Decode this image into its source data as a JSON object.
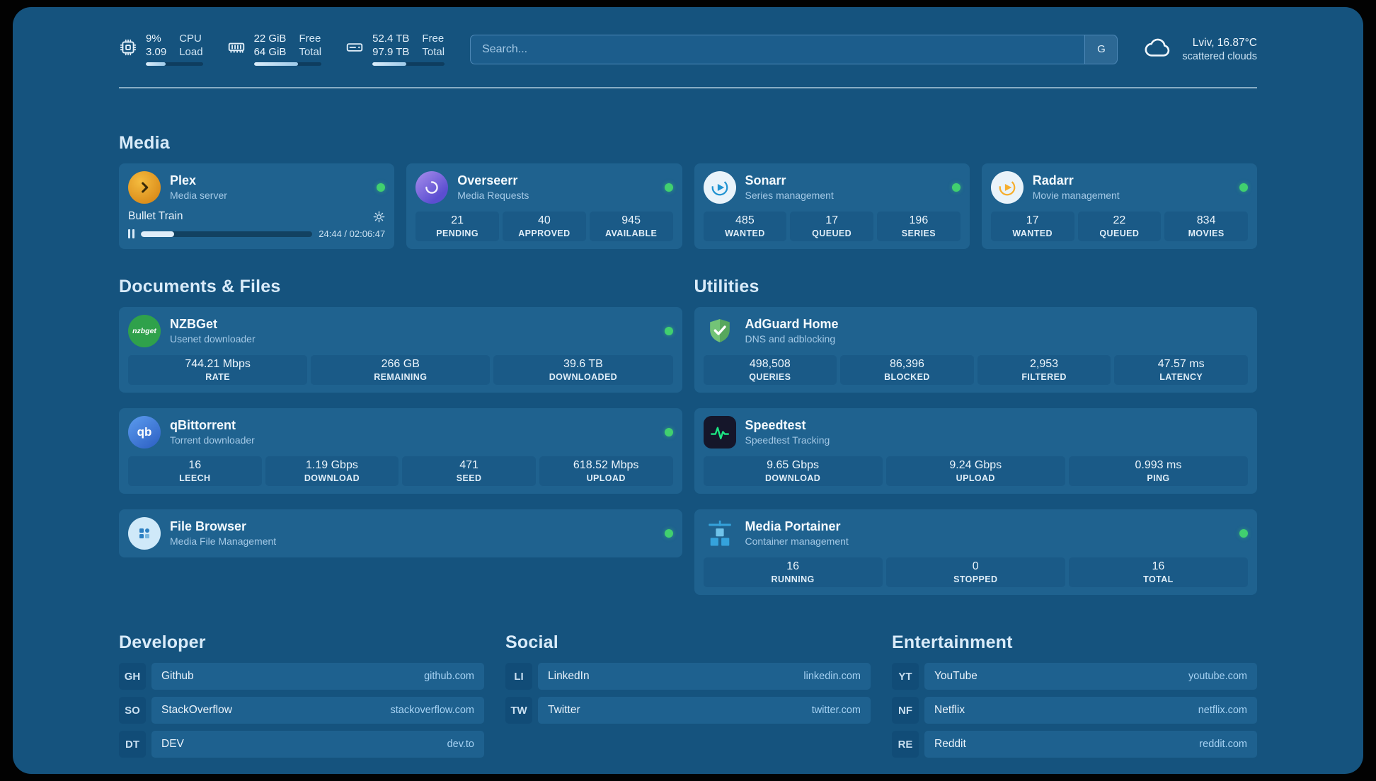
{
  "topbar": {
    "monitors": [
      {
        "id": "cpu",
        "values": [
          "9%",
          "3.09"
        ],
        "labels": [
          "CPU",
          "Load"
        ],
        "progress": 35
      },
      {
        "id": "ram",
        "values": [
          "22 GiB",
          "64 GiB"
        ],
        "labels": [
          "Free",
          "Total"
        ],
        "progress": 65
      },
      {
        "id": "disk",
        "values": [
          "52.4 TB",
          "97.9 TB"
        ],
        "labels": [
          "Free",
          "Total"
        ],
        "progress": 47
      }
    ],
    "search": {
      "placeholder": "Search...",
      "button_label": "G"
    },
    "weather": {
      "location": "Lviv, 16.87°C",
      "condition": "scattered clouds"
    }
  },
  "sections": {
    "media": "Media",
    "documents": "Documents & Files",
    "utilities": "Utilities",
    "developer": "Developer",
    "social": "Social",
    "entertainment": "Entertainment"
  },
  "apps": {
    "plex": {
      "name": "Plex",
      "subtitle": "Media server",
      "player": {
        "title": "Bullet Train",
        "time": "24:44 / 02:06:47",
        "progress": 19.5
      }
    },
    "overseerr": {
      "name": "Overseerr",
      "subtitle": "Media Requests",
      "stats": [
        {
          "value": "21",
          "label": "PENDING"
        },
        {
          "value": "40",
          "label": "APPROVED"
        },
        {
          "value": "945",
          "label": "AVAILABLE"
        }
      ]
    },
    "sonarr": {
      "name": "Sonarr",
      "subtitle": "Series management",
      "stats": [
        {
          "value": "485",
          "label": "WANTED"
        },
        {
          "value": "17",
          "label": "QUEUED"
        },
        {
          "value": "196",
          "label": "SERIES"
        }
      ]
    },
    "radarr": {
      "name": "Radarr",
      "subtitle": "Movie management",
      "stats": [
        {
          "value": "17",
          "label": "WANTED"
        },
        {
          "value": "22",
          "label": "QUEUED"
        },
        {
          "value": "834",
          "label": "MOVIES"
        }
      ]
    },
    "nzbget": {
      "name": "NZBGet",
      "subtitle": "Usenet downloader",
      "icon_text": "nzbget",
      "stats": [
        {
          "value": "744.21 Mbps",
          "label": "RATE"
        },
        {
          "value": "266 GB",
          "label": "REMAINING"
        },
        {
          "value": "39.6 TB",
          "label": "DOWNLOADED"
        }
      ]
    },
    "qbittorrent": {
      "name": "qBittorrent",
      "subtitle": "Torrent downloader",
      "icon_text": "qb",
      "stats": [
        {
          "value": "16",
          "label": "LEECH"
        },
        {
          "value": "1.19 Gbps",
          "label": "DOWNLOAD"
        },
        {
          "value": "471",
          "label": "SEED"
        },
        {
          "value": "618.52 Mbps",
          "label": "UPLOAD"
        }
      ]
    },
    "filebrowser": {
      "name": "File Browser",
      "subtitle": "Media File Management"
    },
    "adguard": {
      "name": "AdGuard Home",
      "subtitle": "DNS and adblocking",
      "stats": [
        {
          "value": "498,508",
          "label": "QUERIES"
        },
        {
          "value": "86,396",
          "label": "BLOCKED"
        },
        {
          "value": "2,953",
          "label": "FILTERED"
        },
        {
          "value": "47.57 ms",
          "label": "LATENCY"
        }
      ]
    },
    "speedtest": {
      "name": "Speedtest",
      "subtitle": "Speedtest Tracking",
      "stats": [
        {
          "value": "9.65 Gbps",
          "label": "DOWNLOAD"
        },
        {
          "value": "9.24 Gbps",
          "label": "UPLOAD"
        },
        {
          "value": "0.993 ms",
          "label": "PING"
        }
      ]
    },
    "portainer": {
      "name": "Media Portainer",
      "subtitle": "Container management",
      "stats": [
        {
          "value": "16",
          "label": "RUNNING"
        },
        {
          "value": "0",
          "label": "STOPPED"
        },
        {
          "value": "16",
          "label": "TOTAL"
        }
      ]
    }
  },
  "links": {
    "developer": [
      {
        "abbr": "GH",
        "name": "Github",
        "url": "github.com"
      },
      {
        "abbr": "SO",
        "name": "StackOverflow",
        "url": "stackoverflow.com"
      },
      {
        "abbr": "DT",
        "name": "DEV",
        "url": "dev.to"
      }
    ],
    "social": [
      {
        "abbr": "LI",
        "name": "LinkedIn",
        "url": "linkedin.com"
      },
      {
        "abbr": "TW",
        "name": "Twitter",
        "url": "twitter.com"
      }
    ],
    "entertainment": [
      {
        "abbr": "YT",
        "name": "YouTube",
        "url": "youtube.com"
      },
      {
        "abbr": "NF",
        "name": "Netflix",
        "url": "netflix.com"
      },
      {
        "abbr": "RE",
        "name": "Reddit",
        "url": "reddit.com"
      }
    ]
  },
  "colors": {
    "accent_green": "#41D06F",
    "page_bg": "#15537E",
    "card_bg": "#1F628F"
  }
}
